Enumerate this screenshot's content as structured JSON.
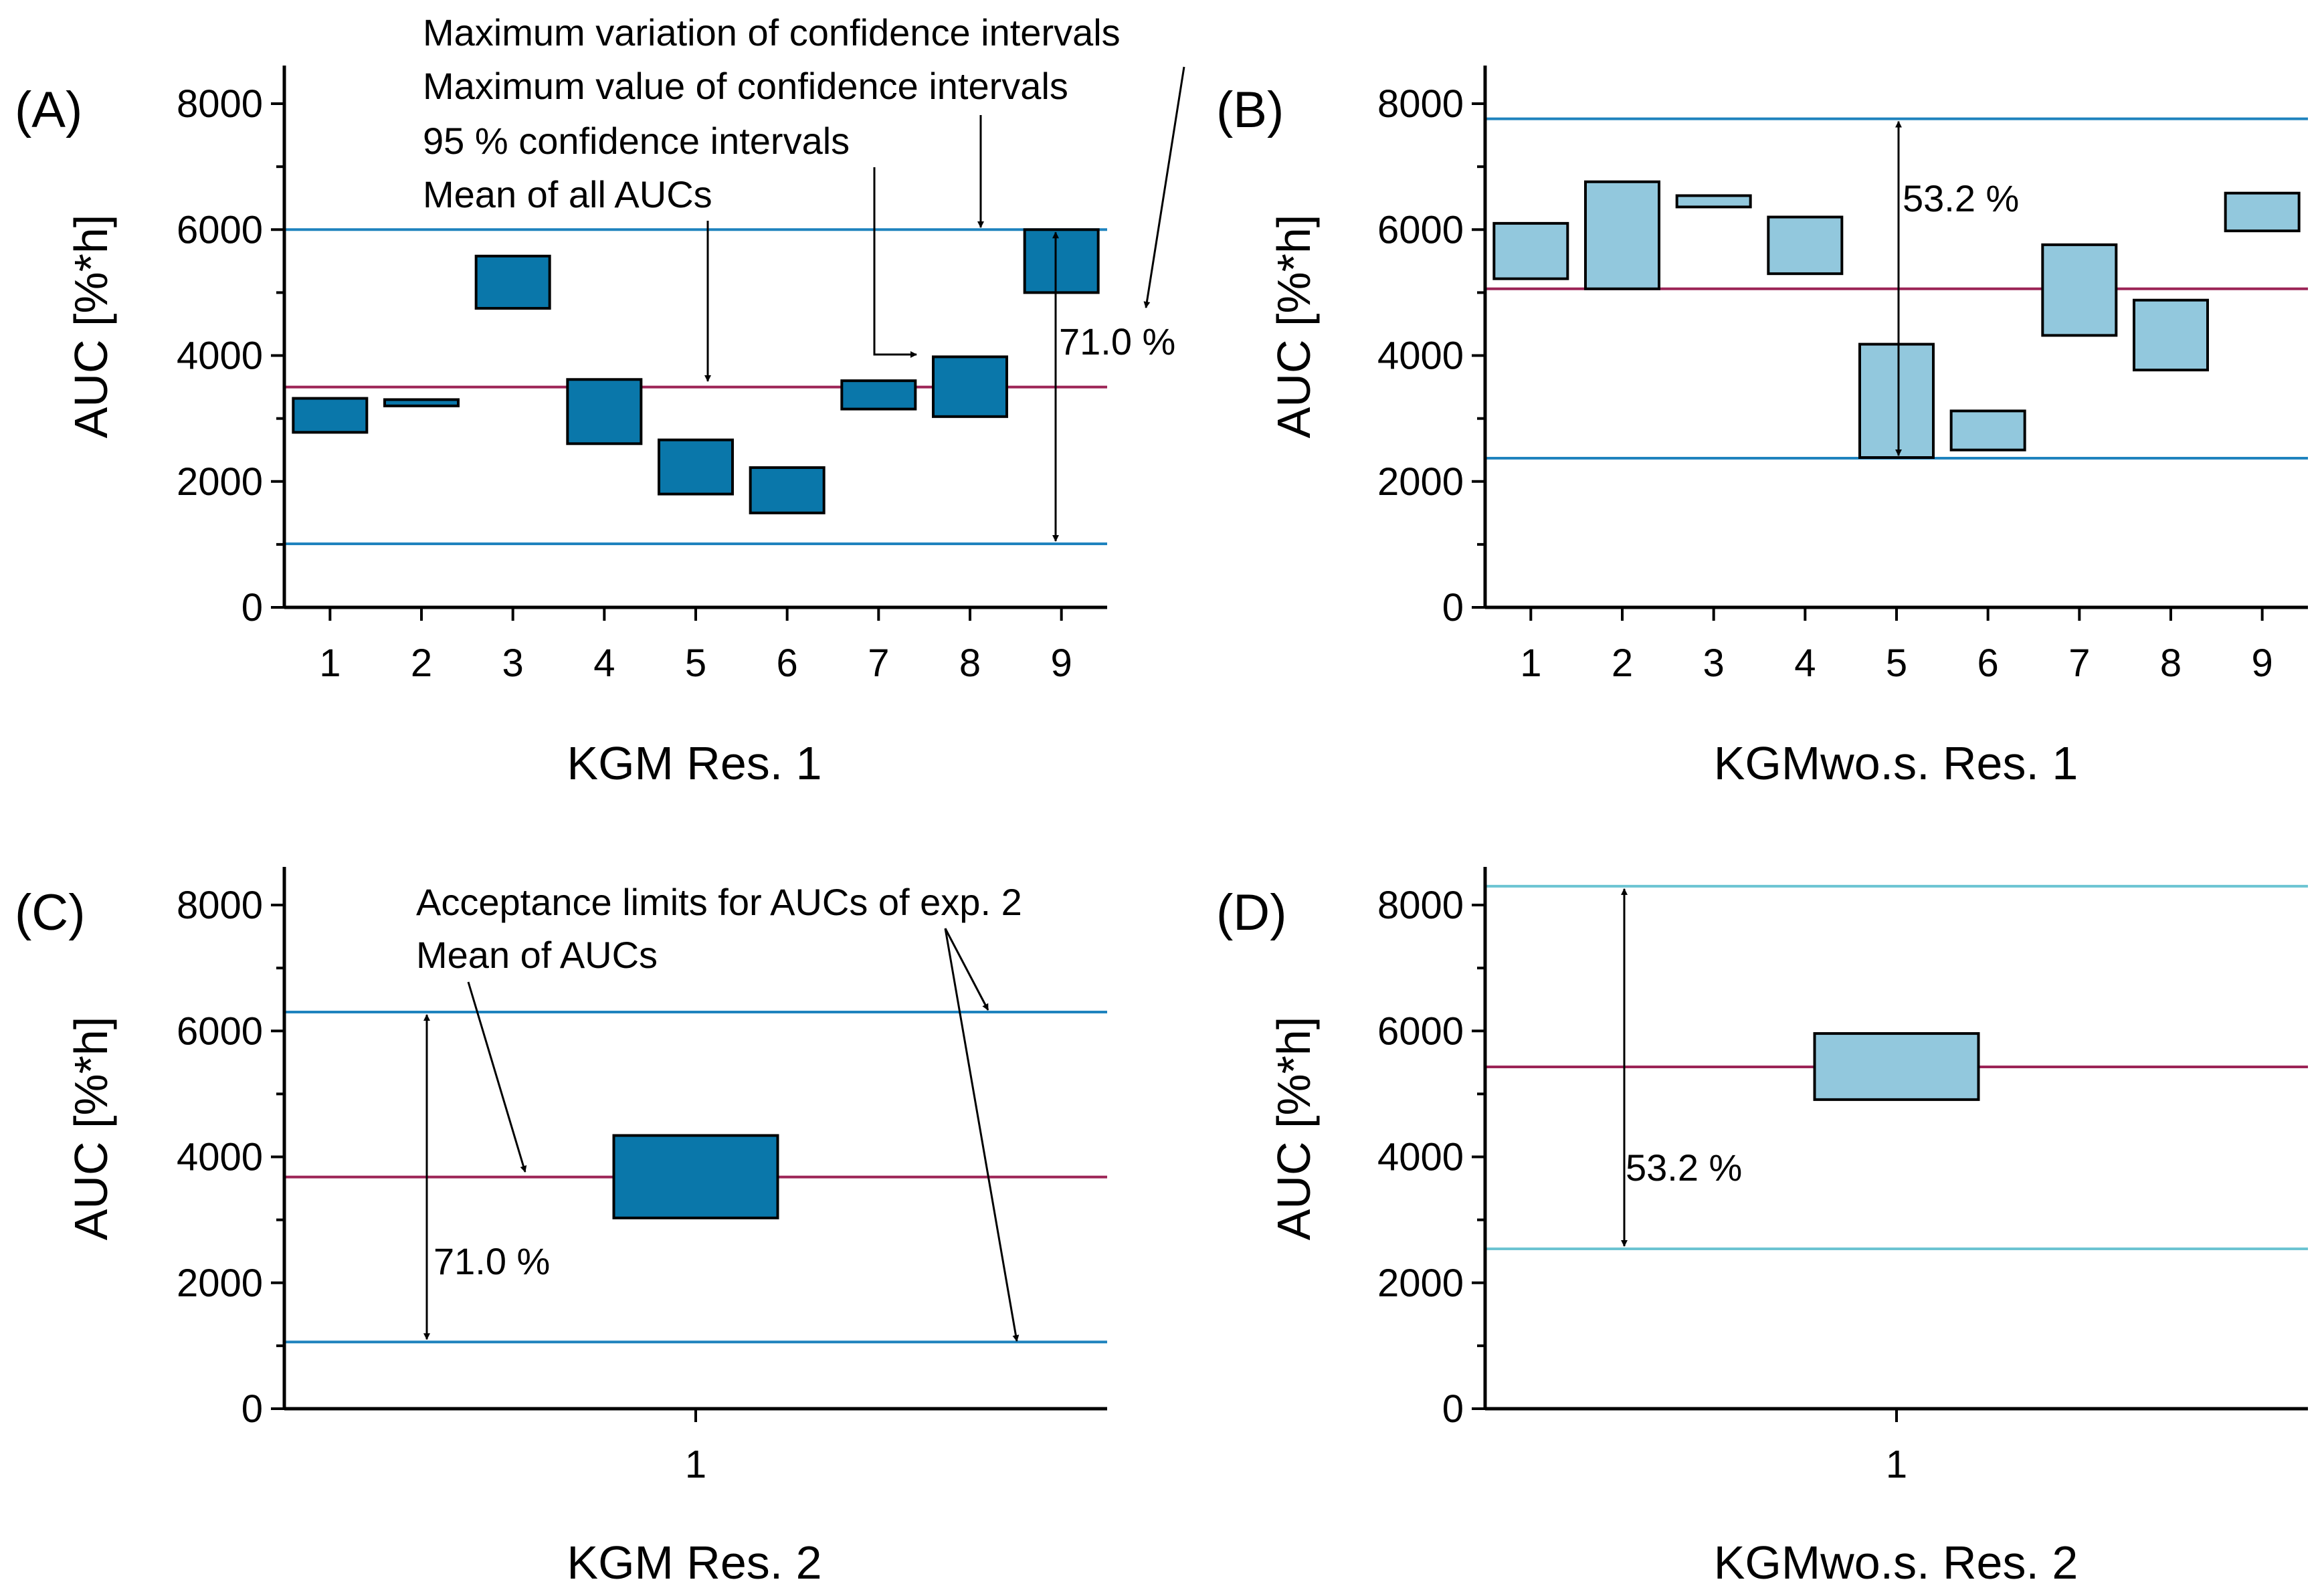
{
  "colors": {
    "box_dark": "#0a77aa",
    "box_light": "#92c8dd",
    "limit_line": "#1f83be",
    "limit_line_light": "#6cc4d2",
    "mean_line": "#9c2456"
  },
  "chart_data": [
    {
      "id": "A",
      "type": "floating-bar",
      "panel_label": "(A)",
      "xlabel": "KGM Res. 1",
      "ylabel": "AUC [%*h]",
      "ylim": [
        0,
        8500
      ],
      "yticks": [
        "0",
        "2000",
        "4000",
        "6000",
        "8000"
      ],
      "categories": [
        "1",
        "2",
        "3",
        "4",
        "5",
        "6",
        "7",
        "8",
        "9"
      ],
      "ci_low": [
        2780,
        3200,
        4750,
        2600,
        1800,
        1500,
        3150,
        3030,
        5000
      ],
      "ci_high": [
        3320,
        3300,
        5580,
        3620,
        2660,
        2220,
        3600,
        3980,
        6000
      ],
      "mean": 3500,
      "upper_limit": 6000,
      "lower_limit": 1010,
      "variation_label": "71.0 %",
      "annotations": [
        "Maximum variation of confidence intervals",
        "Maximum value of confidence intervals",
        "95 % confidence intervals",
        "Mean of all AUCs"
      ]
    },
    {
      "id": "B",
      "type": "floating-bar",
      "panel_label": "(B)",
      "xlabel": "KGMwo.s. Res. 1",
      "ylabel": "AUC [%*h]",
      "ylim": [
        0,
        8500
      ],
      "yticks": [
        "0",
        "2000",
        "4000",
        "6000",
        "8000"
      ],
      "categories": [
        "1",
        "2",
        "3",
        "4",
        "5",
        "6",
        "7",
        "8",
        "9"
      ],
      "ci_low": [
        5220,
        5060,
        6360,
        5300,
        2380,
        2500,
        4320,
        3770,
        5980
      ],
      "ci_high": [
        6100,
        6760,
        6540,
        6200,
        4180,
        3120,
        5760,
        4880,
        6580
      ],
      "mean": 5060,
      "upper_limit": 7760,
      "lower_limit": 2370,
      "variation_label": "53.2 %"
    },
    {
      "id": "C",
      "type": "floating-bar",
      "panel_label": "(C)",
      "xlabel": "KGM Res. 2",
      "ylabel": "AUC [%*h]",
      "ylim": [
        0,
        8500
      ],
      "yticks": [
        "0",
        "2000",
        "4000",
        "6000",
        "8000"
      ],
      "categories": [
        "1"
      ],
      "ci_low": [
        3030
      ],
      "ci_high": [
        4340
      ],
      "mean": 3680,
      "upper_limit": 6300,
      "lower_limit": 1060,
      "variation_label": "71.0 %",
      "annotations": [
        "Acceptance limits for AUCs of exp. 2",
        "Mean of AUCs"
      ]
    },
    {
      "id": "D",
      "type": "floating-bar",
      "panel_label": "(D)",
      "xlabel": "KGMwo.s. Res. 2",
      "ylabel": "AUC [%*h]",
      "ylim": [
        0,
        8500
      ],
      "yticks": [
        "0",
        "2000",
        "4000",
        "6000",
        "8000"
      ],
      "categories": [
        "1"
      ],
      "ci_low": [
        4910
      ],
      "ci_high": [
        5960
      ],
      "mean": 5430,
      "upper_limit": 8300,
      "lower_limit": 2540,
      "variation_label": "53.2 %"
    }
  ]
}
